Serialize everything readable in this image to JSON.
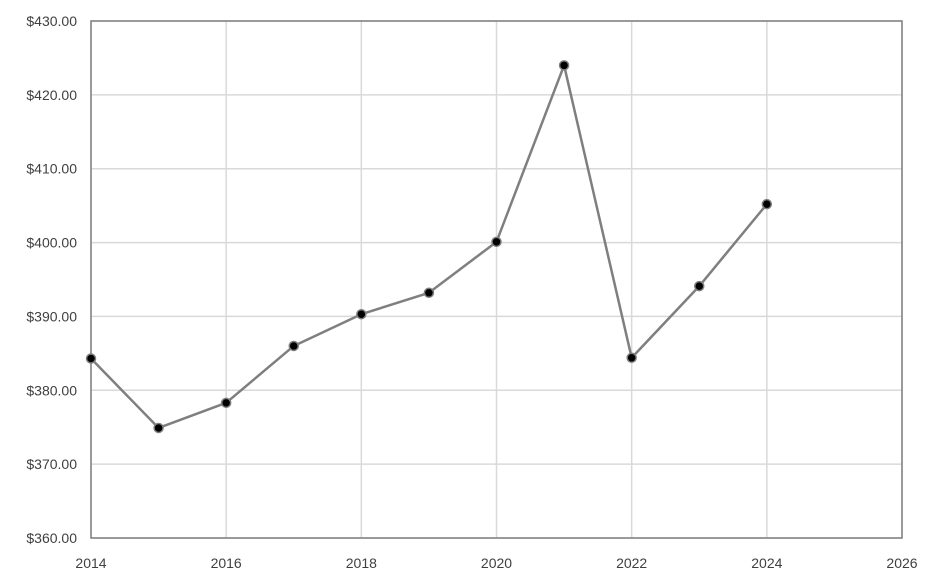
{
  "chart_data": {
    "type": "line",
    "title": "",
    "xlabel": "",
    "ylabel": "",
    "xlim": [
      2014,
      2026
    ],
    "ylim": [
      360,
      430
    ],
    "x_ticks": [
      2014,
      2016,
      2018,
      2020,
      2022,
      2024,
      2026
    ],
    "x_tick_labels": [
      "2014",
      "2016",
      "2018",
      "2020",
      "2022",
      "2024",
      "2026"
    ],
    "y_ticks": [
      360,
      370,
      380,
      390,
      400,
      410,
      420,
      430
    ],
    "y_tick_labels": [
      "$360.00",
      "$370.00",
      "$380.00",
      "$390.00",
      "$400.00",
      "$410.00",
      "$420.00",
      "$430.00"
    ],
    "grid": true,
    "legend": "none",
    "series": [
      {
        "x": [
          2014,
          2015,
          2016,
          2017,
          2018,
          2019,
          2020,
          2021,
          2022,
          2023,
          2024
        ],
        "values": [
          384.3,
          374.9,
          378.3,
          386.0,
          390.3,
          393.2,
          400.1,
          424.0,
          384.4,
          394.1,
          405.2
        ],
        "line_color": "#7f7f7f",
        "marker_color": "#000000"
      }
    ]
  }
}
